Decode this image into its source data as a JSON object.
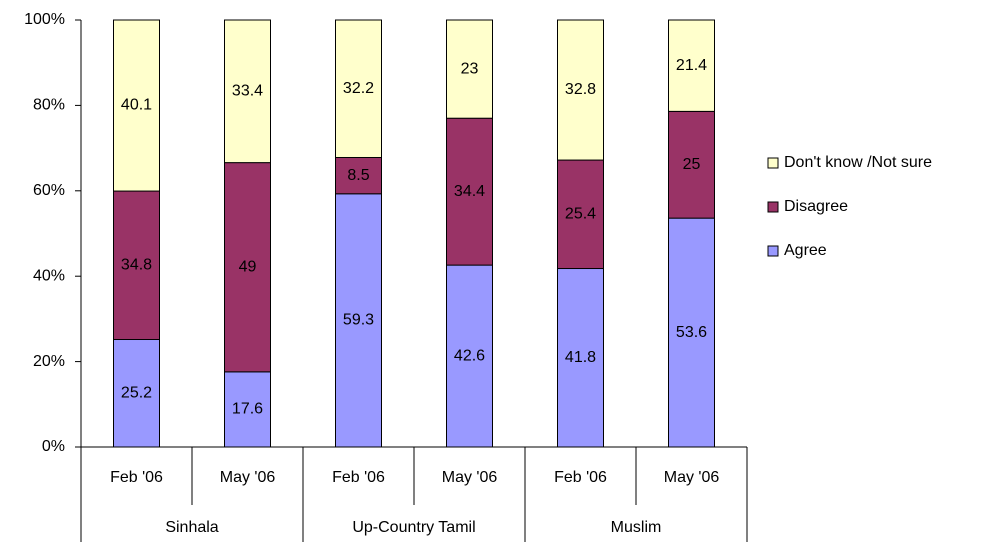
{
  "chart_data": {
    "type": "stacked_bar",
    "stacking": "percent",
    "categories": [
      "Feb '06",
      "May '06",
      "Feb '06",
      "May '06",
      "Feb '06",
      "May '06"
    ],
    "groups": [
      "Sinhala",
      "Up-Country Tamil",
      "Muslim"
    ],
    "series": [
      {
        "name": "Agree",
        "color": "#9999ff",
        "values": [
          25.2,
          17.6,
          59.3,
          42.6,
          41.8,
          53.6
        ]
      },
      {
        "name": "Disagree",
        "color": "#993366",
        "values": [
          34.8,
          49,
          8.5,
          34.4,
          25.4,
          25
        ]
      },
      {
        "name": "Don't know /Not sure",
        "color": "#ffffcc",
        "values": [
          40.1,
          33.4,
          32.2,
          23,
          32.8,
          21.4
        ]
      }
    ],
    "ylim": [
      0,
      100
    ],
    "yticks": [
      {
        "value": 0,
        "label": "0%"
      },
      {
        "value": 20,
        "label": "20%"
      },
      {
        "value": 40,
        "label": "40%"
      },
      {
        "value": 60,
        "label": "60%"
      },
      {
        "value": 80,
        "label": "80%"
      },
      {
        "value": 100,
        "label": "100%"
      }
    ],
    "legend": "right",
    "grid": false
  }
}
